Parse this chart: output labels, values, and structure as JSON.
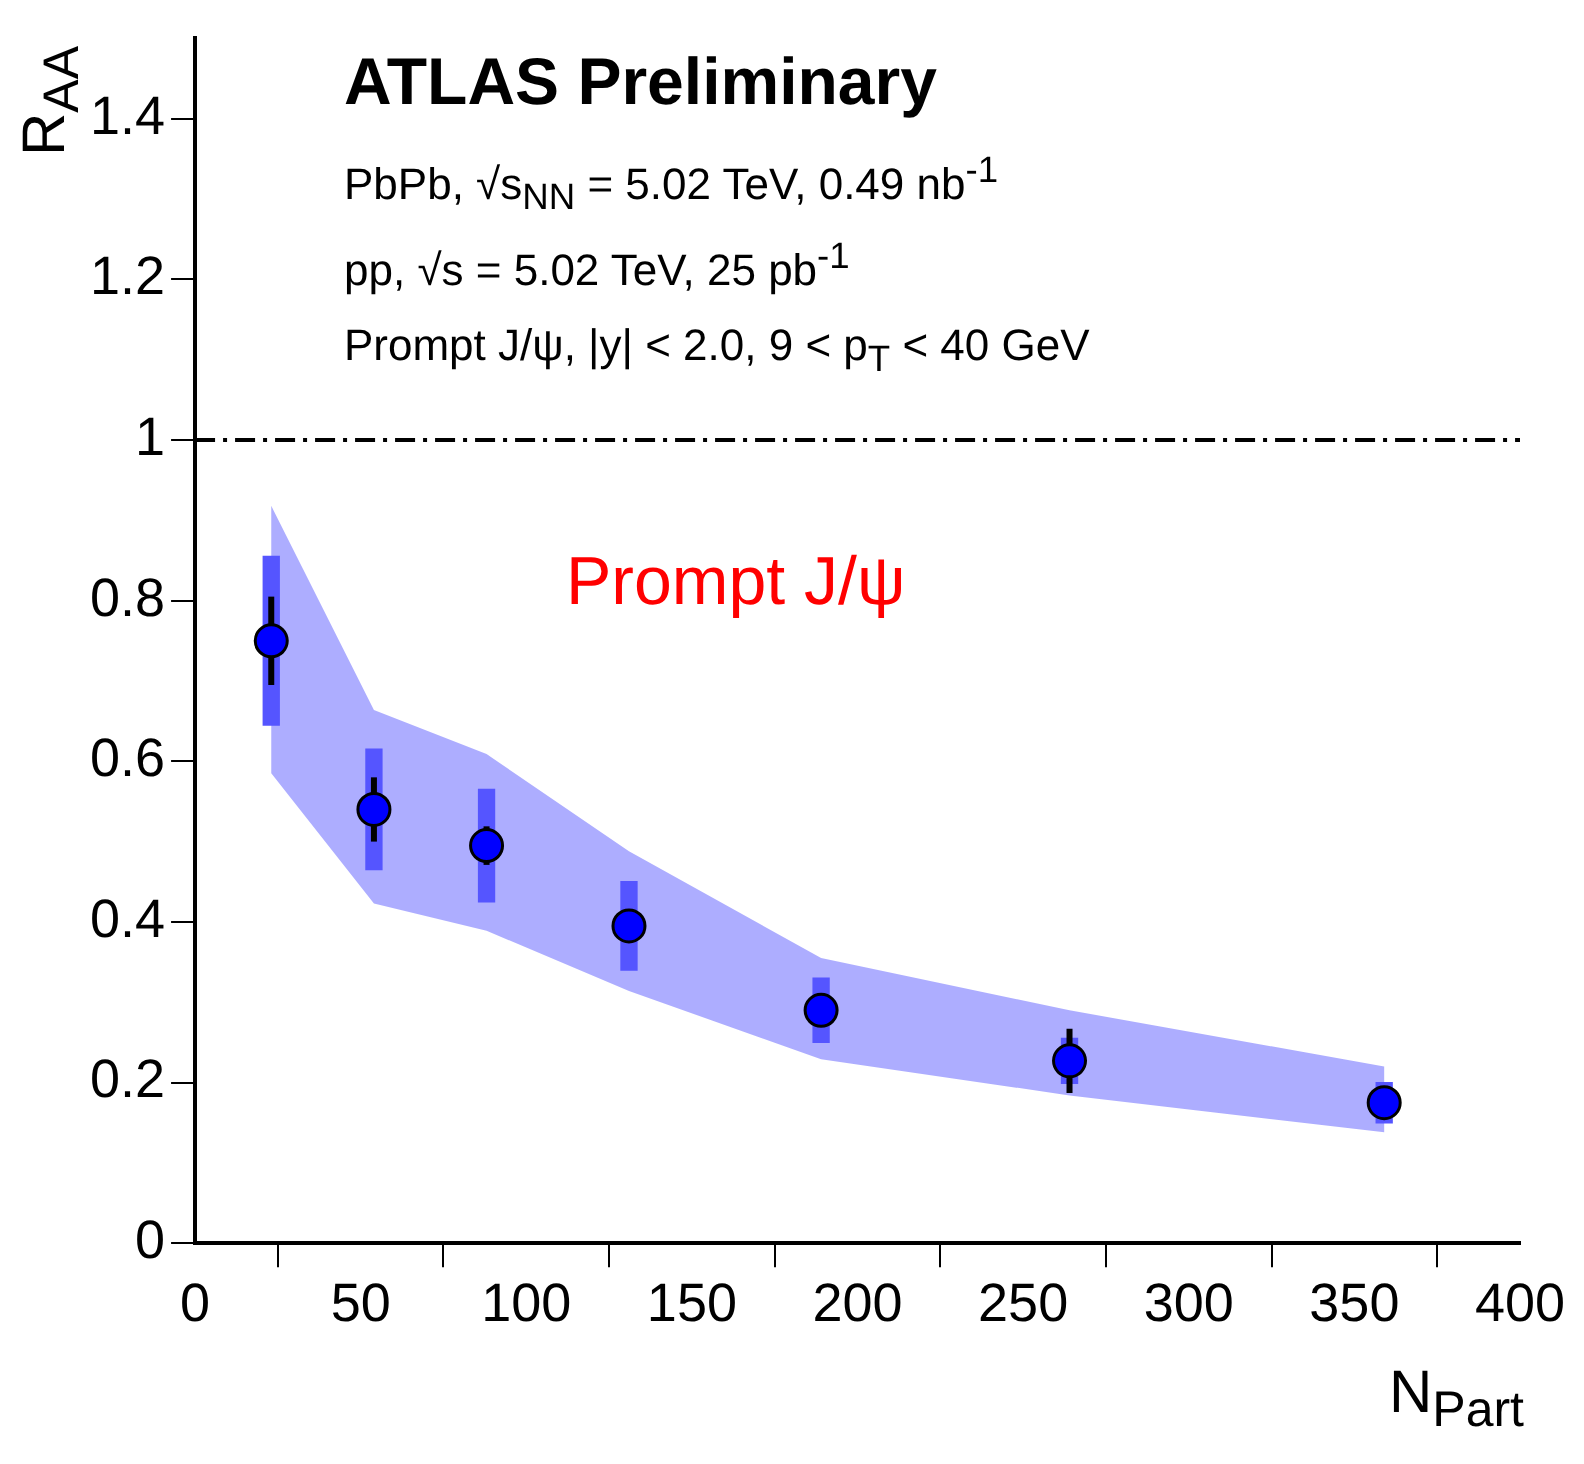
{
  "chart_data": {
    "type": "scatter",
    "xlabel": "N$_{Part}$",
    "ylabel": "R$_{AA}$",
    "annotations": [
      "ATLAS Preliminary",
      "PbPb, √s$_{NN}$ = 5.02 TeV, 0.49 nb$^{-1}$",
      "pp, √s = 5.02 TeV, 25 pb$^{-1}$",
      "Prompt J/ψ, |y| < 2.0, 9 < p$_{T}$ < 40 GeV",
      "Prompt J/ψ"
    ],
    "x": [
      23,
      54,
      88,
      131,
      189,
      264,
      359
    ],
    "marker": "circle",
    "series": [
      {
        "color": "#0000ff",
        "values": [
          0.75,
          0.54,
          0.495,
          0.395,
          0.29,
          0.227,
          0.175
        ],
        "errors": [
          0.055,
          0.04,
          0.024,
          null,
          null,
          0.04,
          null
        ],
        "lower": [
          0.585,
          0.423,
          0.389,
          0.314,
          0.229,
          0.184,
          0.138
        ],
        "upper": [
          0.918,
          0.664,
          0.609,
          0.488,
          0.355,
          0.29,
          0.22
        ]
      },
      {
        "type": "bar",
        "color": "#5555ff",
        "base": [
          0.645,
          0.465,
          0.425,
          0.34,
          0.25,
          0.199,
          0.15
        ],
        "values": [
          0.21,
          0.15,
          0.14,
          0.11,
          0.08,
          0.056,
          0.05
        ]
      }
    ],
    "xlim": [
      0,
      400
    ],
    "xticks": [
      0,
      50,
      100,
      150,
      200,
      250,
      300,
      350,
      400
    ],
    "ylim": [
      0,
      1.5
    ],
    "yticks": [
      0,
      0.2,
      0.4,
      0.6,
      0.8,
      1,
      1.2,
      1.4
    ],
    "ref_lines": [
      {
        "axis": "y",
        "value": 1,
        "color": "#000000",
        "line_style": "dashed"
      }
    ]
  }
}
